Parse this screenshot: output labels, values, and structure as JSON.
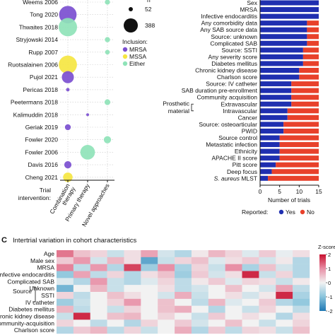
{
  "panel_labels": {
    "c": "C"
  },
  "bubble": {
    "trials": [
      "Weems 2006",
      "Tong 2020",
      "Thwaites 2018",
      "Stryjowski 2014",
      "Rupp 2007",
      "Ruotsalainen 2006",
      "Pujol 2021",
      "Pericas 2018",
      "Peetermans 2018",
      "Kalimuddin 2018",
      "Geriak 2019",
      "Fowler 2020",
      "Fowler 2006",
      "Davis 2016",
      "Cheng 2021"
    ],
    "axis_title": "Trial\nintervention:",
    "categories": [
      "Combination therapy",
      "Primary therapy",
      "Novel approaches"
    ],
    "size_legend": {
      "header": "n",
      "values": [
        52,
        388
      ]
    },
    "inclusion_legend": {
      "title": "Inclusion:",
      "items": [
        {
          "label": "MRSA",
          "color": "#7b4fd0"
        },
        {
          "label": "MSSA",
          "color": "#f5e642"
        },
        {
          "label": "Either",
          "color": "#8fe3b8"
        }
      ]
    },
    "chart_data": {
      "type": "scatter",
      "note_series": "bubble chart: trial vs intervention category, bubble size = n",
      "points": [
        {
          "trial": "Weems 2006",
          "category": "Novel approaches",
          "inclusion": "Either",
          "n": 30
        },
        {
          "trial": "Tong 2020",
          "category": "Combination therapy",
          "inclusion": "MRSA",
          "n": 352
        },
        {
          "trial": "Thwaites 2018",
          "category": "Combination therapy",
          "inclusion": "Either",
          "n": 388
        },
        {
          "trial": "Stryjowski 2014",
          "category": "Novel approaches",
          "inclusion": "Either",
          "n": 31
        },
        {
          "trial": "Rupp 2007",
          "category": "Novel approaches",
          "inclusion": "Either",
          "n": 25
        },
        {
          "trial": "Ruotsalainen 2006",
          "category": "Combination therapy",
          "inclusion": "MSSA",
          "n": 381
        },
        {
          "trial": "Pujol 2021",
          "category": "Combination therapy",
          "inclusion": "MRSA",
          "n": 167
        },
        {
          "trial": "Pericas 2018",
          "category": "Combination therapy",
          "inclusion": "MRSA",
          "n": 14
        },
        {
          "trial": "Peetermans 2018",
          "category": "Novel approaches",
          "inclusion": "Either",
          "n": 38
        },
        {
          "trial": "Kalimuddin 2018",
          "category": "Primary therapy",
          "inclusion": "MRSA",
          "n": 10
        },
        {
          "trial": "Geriak 2019",
          "category": "Combination therapy",
          "inclusion": "MRSA",
          "n": 40
        },
        {
          "trial": "Fowler 2020",
          "category": "Novel approaches",
          "inclusion": "Either",
          "n": 60
        },
        {
          "trial": "Fowler 2006",
          "category": "Primary therapy",
          "inclusion": "Either",
          "n": 246
        },
        {
          "trial": "Davis 2016",
          "category": "Combination therapy",
          "inclusion": "MRSA",
          "n": 60
        },
        {
          "trial": "Cheng 2021",
          "category": "Combination therapy",
          "inclusion": "MSSA",
          "n": 104
        }
      ]
    }
  },
  "stack": {
    "xlabel": "Number of trials",
    "xticks": [
      0,
      5,
      10,
      15
    ],
    "legend": {
      "title": "Reported:",
      "yes": "Yes",
      "no": "No",
      "yes_color": "#1f2fb0",
      "no_color": "#e8412b"
    },
    "bracket_groups": [
      {
        "label": "Prosthetic material"
      },
      {
        "label": "Source"
      }
    ],
    "chart_data": {
      "type": "bar",
      "orientation": "horizontal",
      "xlim": [
        0,
        15
      ],
      "categories": [
        "Sex",
        "MRSA",
        "Infective endocarditis",
        "Any comorbidity data",
        "Any SAB source data",
        "Source: unknown",
        "Complicated SAB",
        "Source: SSTI",
        "Any severity score",
        "Diabetes mellitus",
        "Chronic kidney disease",
        "Charlson score",
        "Source: IV catheter",
        "SAB duration pre-enrollment",
        "Community acquisition",
        "Extravascular",
        "Intravascular",
        "Cancer",
        "Source: osteoarticular",
        "PWID",
        "Source control",
        "Metastatic infection",
        "Ethnicity",
        "APACHE II score",
        "Pitt score",
        "Deep focus",
        "S. aureus MLST"
      ],
      "series": [
        {
          "name": "Yes",
          "values": [
            15,
            15,
            15,
            12,
            12,
            12,
            12,
            11,
            11,
            11,
            10,
            10,
            8,
            8,
            8,
            8,
            7,
            7,
            6,
            6,
            5,
            5,
            5,
            5,
            4,
            3,
            2
          ]
        },
        {
          "name": "No",
          "values": [
            0,
            0,
            0,
            3,
            3,
            3,
            3,
            4,
            4,
            4,
            5,
            5,
            7,
            7,
            7,
            7,
            8,
            8,
            9,
            9,
            10,
            10,
            10,
            10,
            11,
            12,
            13
          ]
        }
      ]
    }
  },
  "heatmap": {
    "title": "Intertrial variation in cohort characteristics",
    "scale_title": "Z-score",
    "scale_ticks": [
      "2",
      "1",
      "0",
      "-1",
      "-2"
    ],
    "source_group_label": "Source",
    "chart_data": {
      "type": "heatmap",
      "rows": [
        "Age",
        "Male sex",
        "MRSA",
        "Infective endocarditis",
        "Complicated SAB",
        "Unknown",
        "SSTI",
        "IV catheter",
        "Diabetes mellitus",
        "Chronic kidney disease",
        "Community-acquisition",
        "Charlson score"
      ],
      "columns": 15,
      "zlim": [
        -2,
        2
      ],
      "values": [
        [
          1.2,
          0.5,
          0.3,
          -0.4,
          0.2,
          0.8,
          -0.3,
          -0.6,
          0.1,
          0.6,
          0.3,
          -0.2,
          0.4,
          -0.1,
          0.2
        ],
        [
          0.4,
          0.9,
          -0.3,
          0.6,
          0.2,
          -1.4,
          -0.4,
          0.3,
          0.5,
          -0.2,
          0.2,
          0.4,
          -0.3,
          0.1,
          -0.6
        ],
        [
          1.1,
          -0.5,
          0.9,
          -0.6,
          1.6,
          -0.8,
          1.0,
          -0.7,
          0.3,
          -0.4,
          1.0,
          -0.7,
          0.5,
          -0.3,
          -0.6
        ],
        [
          -0.9,
          0.8,
          -0.5,
          0.3,
          -0.6,
          0.2,
          0.5,
          -0.8,
          0.4,
          -0.3,
          0.2,
          1.8,
          -0.4,
          0.3,
          -0.6
        ],
        [
          -0.2,
          -0.6,
          0.9,
          -0.4,
          -0.6,
          -0.2,
          0.3,
          -0.5,
          0.1,
          0.4,
          -0.2,
          0.3,
          0.2,
          -0.4,
          0.1
        ],
        [
          -1.2,
          0.0,
          0.6,
          -0.4,
          0.0,
          0.0,
          0.2,
          -0.5,
          -0.3,
          0.0,
          0.5,
          0.0,
          -0.3,
          0.8,
          -0.5
        ],
        [
          0.3,
          -0.5,
          0.0,
          0.5,
          0.2,
          0.0,
          -0.3,
          0.7,
          -0.4,
          0.0,
          0.2,
          -0.3,
          0.1,
          1.8,
          -0.7
        ],
        [
          -0.8,
          -0.4,
          0.0,
          0.3,
          0.9,
          0.0,
          0.5,
          0.0,
          -0.5,
          0.6,
          -0.2,
          0.0,
          0.4,
          -0.6,
          -0.9
        ],
        [
          0.6,
          -0.5,
          0.0,
          -0.4,
          0.3,
          0.0,
          0.5,
          0.7,
          0.0,
          -0.6,
          0.0,
          -0.4,
          0.3,
          0.0,
          -0.5
        ],
        [
          -0.4,
          1.8,
          0.0,
          0.5,
          0.6,
          0.0,
          0.3,
          0.0,
          -0.4,
          0.4,
          0.0,
          0.2,
          0.0,
          -0.6,
          0.2
        ],
        [
          0.3,
          0.0,
          -0.5,
          0.0,
          -0.6,
          0.3,
          0.0,
          0.4,
          -0.3,
          0.0,
          0.5,
          0.0,
          -0.4,
          0.0,
          0.3
        ],
        [
          -0.6,
          0.4,
          0.6,
          -0.5,
          0.3,
          -0.4,
          0.0,
          0.7,
          -0.6,
          0.4,
          -0.5,
          0.3,
          0.2,
          -0.4,
          0.5
        ]
      ]
    }
  }
}
